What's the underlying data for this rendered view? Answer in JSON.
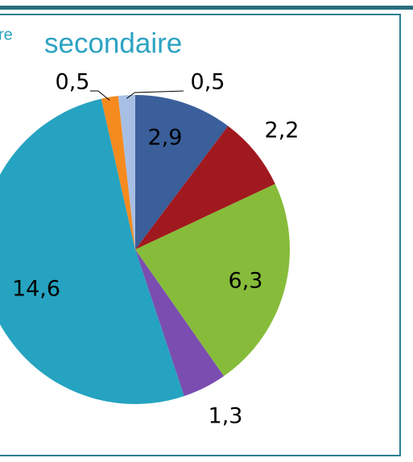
{
  "chart_data": {
    "type": "pie",
    "title_superscript": "re",
    "title": "secondaire",
    "values": [
      2.9,
      2.2,
      6.3,
      1.3,
      14.6,
      0.5,
      0.5
    ],
    "value_labels": [
      "2,9",
      "2,2",
      "6,3",
      "1,3",
      "14,6",
      "0,5",
      "0,5"
    ],
    "colors": [
      "#3a5f9b",
      "#a0191e",
      "#86bc3a",
      "#7b4db0",
      "#25a3c1",
      "#f58a1f",
      "#a8bfe4"
    ]
  }
}
